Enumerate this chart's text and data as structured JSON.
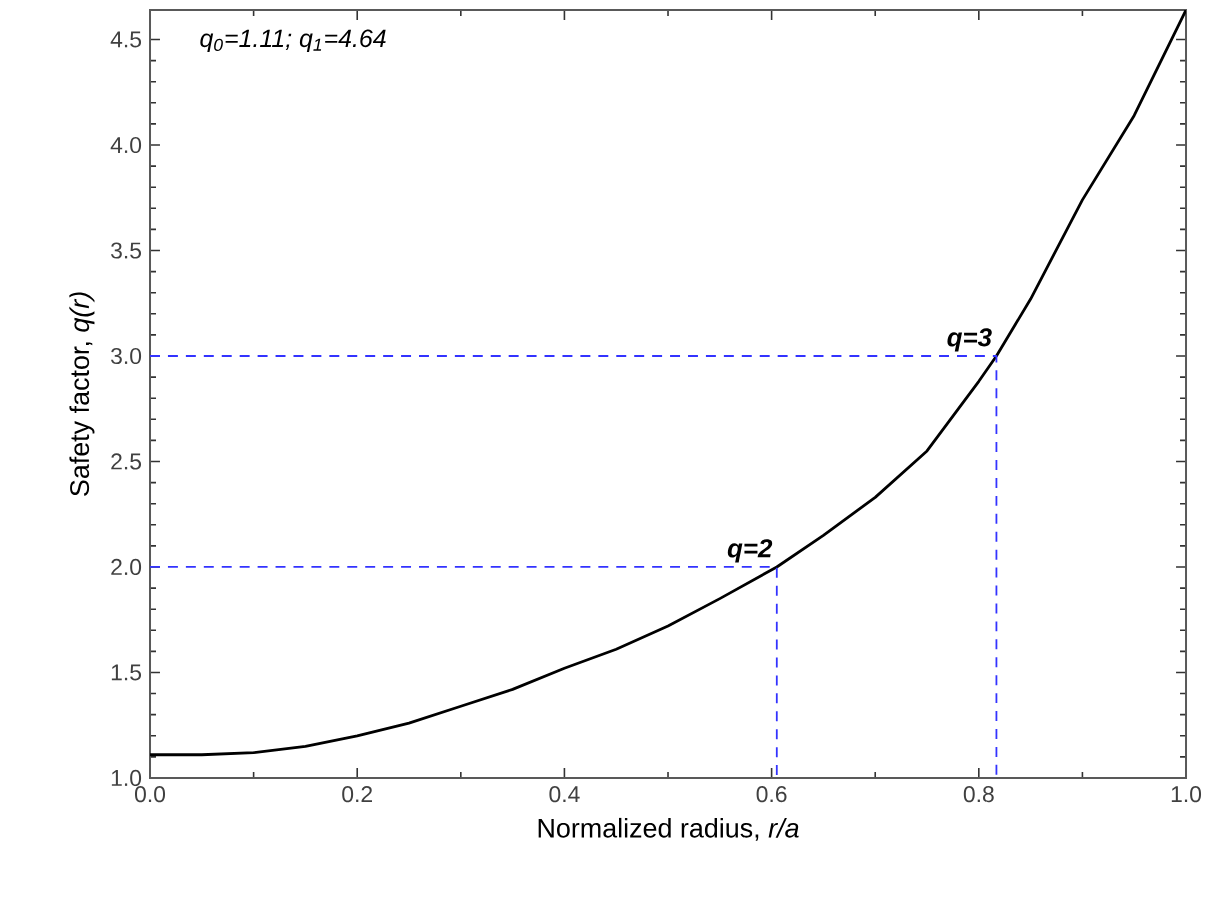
{
  "chart_data": {
    "type": "line",
    "xlabel": "Normalized radius, *r/a*",
    "ylabel": "Safety factor, *q(r)*",
    "xlim": [
      0,
      1
    ],
    "ylim": [
      1,
      4.64
    ],
    "xticks": [
      {
        "value": 0,
        "label": "0.0"
      },
      {
        "value": 0.2,
        "label": "0.2"
      },
      {
        "value": 0.4,
        "label": "0.4"
      },
      {
        "value": 0.6,
        "label": "0.6"
      },
      {
        "value": 0.8,
        "label": "0.8"
      },
      {
        "value": 1,
        "label": "1.0"
      }
    ],
    "yticks": [
      {
        "value": 1,
        "label": "1.0"
      },
      {
        "value": 1.5,
        "label": "1.5"
      },
      {
        "value": 2,
        "label": "2.0"
      },
      {
        "value": 2.5,
        "label": "2.5"
      },
      {
        "value": 3,
        "label": "3.0"
      },
      {
        "value": 3.5,
        "label": "3.5"
      },
      {
        "value": 4,
        "label": "4.0"
      },
      {
        "value": 4.5,
        "label": "4.5"
      }
    ],
    "series": [
      {
        "color": "#000000",
        "line_style": "solid",
        "x": [
          0,
          0.05,
          0.1,
          0.15,
          0.2,
          0.25,
          0.3,
          0.35,
          0.4,
          0.45,
          0.5,
          0.55,
          0.605,
          0.65,
          0.7,
          0.75,
          0.8,
          0.817,
          0.85,
          0.9,
          0.95,
          1
        ],
        "values": [
          1.11,
          1.11,
          1.12,
          1.15,
          1.2,
          1.26,
          1.34,
          1.42,
          1.52,
          1.61,
          1.72,
          1.85,
          2.0,
          2.15,
          2.33,
          2.55,
          2.88,
          3.0,
          3.27,
          3.74,
          4.14,
          4.64
        ]
      },
      {
        "color": "#3333ff",
        "line_style": "dashed",
        "x": [
          0,
          0.605,
          0.605
        ],
        "values": [
          2,
          2,
          1
        ]
      },
      {
        "color": "#3333ff",
        "line_style": "dashed",
        "x": [
          0,
          0.817,
          0.817
        ],
        "values": [
          3,
          3,
          1
        ]
      }
    ],
    "annotations": [
      "q$_{0}$=1.11; q$_{1}$=4.64",
      {
        "text": "q=2",
        "x": 0.605,
        "y": 2
      },
      {
        "text": "q=3",
        "x": 0.817,
        "y": 3
      }
    ]
  }
}
